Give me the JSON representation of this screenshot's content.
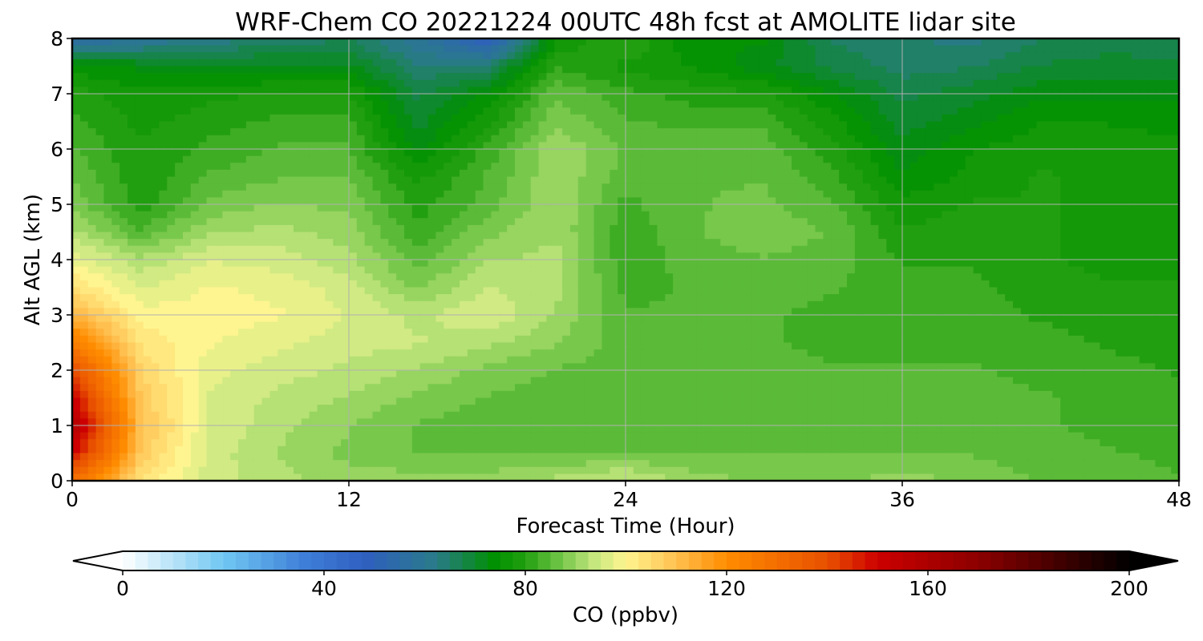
{
  "chart_data": {
    "type": "heatmap",
    "title": "WRF-Chem CO  20221224 00UTC 48h fcst at AMOLITE lidar site",
    "xlabel": "Forecast Time (Hour)",
    "ylabel": "Alt AGL (km)",
    "xlim": [
      0,
      48
    ],
    "ylim": [
      0,
      8
    ],
    "xticks": [
      "0",
      "12",
      "24",
      "36",
      "48"
    ],
    "yticks": [
      "0",
      "1",
      "2",
      "3",
      "4",
      "5",
      "6",
      "7",
      "8"
    ],
    "grid": true,
    "x": [
      0,
      3,
      6,
      9,
      12,
      15,
      18,
      21,
      24,
      27,
      30,
      33,
      36,
      39,
      42,
      45,
      48
    ],
    "y": [
      0,
      0.5,
      1,
      1.5,
      2,
      2.5,
      3,
      3.5,
      4,
      4.5,
      5,
      5.5,
      6,
      6.5,
      7,
      7.5,
      8
    ],
    "z": [
      [
        130,
        103,
        95,
        92,
        90,
        90,
        90,
        92,
        95,
        90,
        88,
        88,
        90,
        88,
        86,
        85,
        84
      ],
      [
        150,
        108,
        95,
        91,
        88,
        86,
        86,
        86,
        86,
        86,
        86,
        86,
        86,
        86,
        85,
        84,
        83
      ],
      [
        160,
        110,
        96,
        92,
        89,
        86,
        85,
        85,
        85,
        86,
        86,
        85,
        85,
        85,
        84,
        83,
        82
      ],
      [
        150,
        108,
        96,
        93,
        91,
        88,
        86,
        85,
        85,
        86,
        86,
        85,
        85,
        85,
        84,
        83,
        82
      ],
      [
        140,
        106,
        97,
        95,
        93,
        91,
        88,
        86,
        85,
        85,
        85,
        84,
        84,
        84,
        83,
        82,
        81
      ],
      [
        125,
        103,
        99,
        97,
        95,
        94,
        92,
        89,
        85,
        84,
        84,
        83,
        83,
        83,
        82,
        81,
        80
      ],
      [
        112,
        100,
        100,
        99,
        96,
        93,
        96,
        91,
        84,
        84,
        84,
        83,
        83,
        82,
        81,
        80,
        79
      ],
      [
        104,
        96,
        99,
        98,
        95,
        88,
        94,
        92,
        83,
        84,
        85,
        84,
        82,
        82,
        80,
        79,
        79
      ],
      [
        98,
        92,
        96,
        95,
        92,
        85,
        91,
        92,
        82,
        85,
        86,
        85,
        81,
        81,
        79,
        78,
        78
      ],
      [
        92,
        84,
        91,
        92,
        90,
        82,
        88,
        91,
        82,
        86,
        88,
        86,
        79,
        80,
        79,
        78,
        78
      ],
      [
        88,
        80,
        87,
        89,
        88,
        80,
        85,
        91,
        83,
        86,
        87,
        84,
        77,
        79,
        79,
        78,
        78
      ],
      [
        86,
        79,
        84,
        86,
        86,
        78,
        84,
        91,
        85,
        86,
        86,
        82,
        74,
        77,
        79,
        78,
        78
      ],
      [
        84,
        79,
        82,
        84,
        84,
        73,
        82,
        91,
        86,
        85,
        85,
        80,
        72,
        76,
        78,
        78,
        77
      ],
      [
        82,
        78,
        80,
        82,
        82,
        70,
        78,
        88,
        84,
        83,
        83,
        77,
        70,
        73,
        76,
        76,
        75
      ],
      [
        80,
        77,
        78,
        79,
        79,
        68,
        74,
        86,
        82,
        80,
        79,
        74,
        68,
        70,
        73,
        73,
        73
      ],
      [
        75,
        73,
        72,
        72,
        72,
        64,
        65,
        81,
        78,
        76,
        72,
        68,
        65,
        66,
        69,
        70,
        70
      ],
      [
        55,
        58,
        62,
        64,
        66,
        59,
        48,
        76,
        82,
        74,
        74,
        66,
        64,
        63,
        66,
        67,
        66
      ]
    ],
    "colorbar": {
      "label": "CO  (ppbv)",
      "min": 0,
      "max": 200,
      "ticks": [
        "0",
        "40",
        "80",
        "120",
        "160",
        "200"
      ],
      "extend": "both",
      "stops": [
        [
          0,
          "#ffffff"
        ],
        [
          20,
          "#70c8f2"
        ],
        [
          36,
          "#3f7fd8"
        ],
        [
          48,
          "#2f5fc0"
        ],
        [
          62,
          "#2a7a8a"
        ],
        [
          74,
          "#009000"
        ],
        [
          80,
          "#229f10"
        ],
        [
          86,
          "#66c040"
        ],
        [
          94,
          "#c8e880"
        ],
        [
          100,
          "#fff590"
        ],
        [
          110,
          "#ffc050"
        ],
        [
          120,
          "#ff8c00"
        ],
        [
          140,
          "#e85000"
        ],
        [
          150,
          "#cc0000"
        ],
        [
          170,
          "#8c0000"
        ],
        [
          200,
          "#000000"
        ]
      ]
    }
  }
}
